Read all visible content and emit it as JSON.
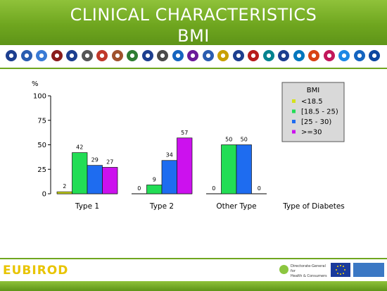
{
  "header": {
    "title_line1": "CLINICAL CHARACTERISTICS",
    "title_line2": "BMI"
  },
  "logos": [
    {
      "icon": "partner-logo-1",
      "color": "#1d3f8f"
    },
    {
      "icon": "partner-logo-2",
      "color": "#2a5db0"
    },
    {
      "icon": "partner-logo-3",
      "color": "#3a7bd5"
    },
    {
      "icon": "partner-logo-4",
      "color": "#8a1c1c"
    },
    {
      "icon": "partner-logo-5",
      "color": "#1d3f8f"
    },
    {
      "icon": "partner-logo-6",
      "color": "#555555"
    },
    {
      "icon": "partner-logo-7",
      "color": "#c0392b"
    },
    {
      "icon": "partner-logo-8",
      "color": "#a0522d"
    },
    {
      "icon": "partner-logo-9",
      "color": "#2e7d32"
    },
    {
      "icon": "partner-logo-10",
      "color": "#1d3f8f"
    },
    {
      "icon": "partner-logo-11",
      "color": "#4a4a4a"
    },
    {
      "icon": "partner-logo-12",
      "color": "#1565c0"
    },
    {
      "icon": "partner-logo-13",
      "color": "#6a1b9a"
    },
    {
      "icon": "partner-logo-14",
      "color": "#2a5db0"
    },
    {
      "icon": "partner-logo-15",
      "color": "#c8a000"
    },
    {
      "icon": "partner-logo-16",
      "color": "#1d3f8f"
    },
    {
      "icon": "partner-logo-17",
      "color": "#b71c1c"
    },
    {
      "icon": "partner-logo-18",
      "color": "#00838f"
    },
    {
      "icon": "partner-logo-19",
      "color": "#1d3f8f"
    },
    {
      "icon": "partner-logo-20",
      "color": "#0277bd"
    },
    {
      "icon": "partner-logo-21",
      "color": "#d84315"
    },
    {
      "icon": "partner-logo-22",
      "color": "#c2185b"
    },
    {
      "icon": "partner-logo-23",
      "color": "#1e88e5"
    },
    {
      "icon": "partner-logo-24",
      "color": "#1565c0"
    },
    {
      "icon": "partner-logo-25",
      "color": "#0d47a1"
    }
  ],
  "chart_data": {
    "type": "bar",
    "ylabel": "%",
    "ylim": [
      0,
      100
    ],
    "yticks": [
      0,
      25,
      50,
      75,
      100
    ],
    "xlabel": "Type of Diabetes",
    "categories": [
      "Type 1",
      "Type 2",
      "Other Type"
    ],
    "legend": {
      "title": "BMI",
      "placement": "top-right"
    },
    "grid": false,
    "series": [
      {
        "name": "<18.5",
        "color": "#d4e21a",
        "values": [
          2,
          0,
          0
        ]
      },
      {
        "name": "[18.5 - 25)",
        "color": "#22dd55",
        "values": [
          42,
          9,
          50
        ]
      },
      {
        "name": "[25 - 30)",
        "color": "#1e6cf0",
        "values": [
          29,
          34,
          50
        ]
      },
      {
        "name": ">=30",
        "color": "#cc11ee",
        "values": [
          27,
          57,
          0
        ]
      }
    ]
  },
  "footer": {
    "project_logo_text": "EUBIROD",
    "dg_text_line1": "Directorate-General for",
    "dg_text_line2": "Health & Consumers"
  }
}
